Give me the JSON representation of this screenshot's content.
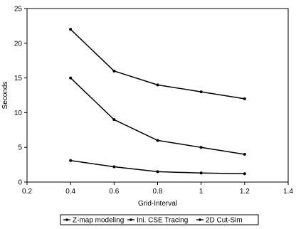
{
  "chart_data": {
    "type": "line",
    "title": "",
    "xlabel": "Grid-Interval",
    "ylabel": "Seconds",
    "xlim": [
      0.2,
      1.4
    ],
    "ylim": [
      0,
      25
    ],
    "x_ticks": [
      "0.2",
      "0.4",
      "0.6",
      "0.8",
      "1",
      "1.2",
      "1.4"
    ],
    "y_ticks": [
      "0",
      "5",
      "10",
      "15",
      "20",
      "25"
    ],
    "x_tick_values": [
      0.2,
      0.4,
      0.6,
      0.8,
      1.0,
      1.2,
      1.4
    ],
    "y_tick_values": [
      0,
      5,
      10,
      15,
      20,
      25
    ],
    "x": [
      0.4,
      0.6,
      0.8,
      1.0,
      1.2
    ],
    "series": [
      {
        "name": "Z-map modeling",
        "values": [
          22,
          16,
          14,
          13,
          12
        ]
      },
      {
        "name": "Ini. CSE Tracing",
        "values": [
          15,
          9,
          6,
          5,
          4
        ]
      },
      {
        "name": "2D Cut-Sim",
        "values": [
          3.1,
          2.2,
          1.5,
          1.3,
          1.2
        ]
      }
    ],
    "grid": false,
    "legend_position": "bottom",
    "colors": {
      "line": "#000000",
      "axis": "#000000"
    }
  }
}
